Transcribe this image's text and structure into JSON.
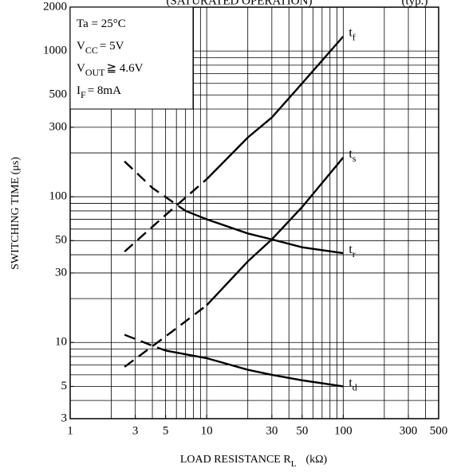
{
  "chart_data": {
    "type": "line",
    "title": "(SATURATED  OPERATION)",
    "subtitle": "(typ.)",
    "ylabel": "SWITCHING TIME  (μs)",
    "xlabel": "LOAD RESISTANCE  R",
    "xlabel_sub": "L",
    "xlabel_rest": "(kΩ)",
    "log_x": true,
    "log_y": true,
    "xlim": [
      1,
      500
    ],
    "ylim": [
      3,
      2000
    ],
    "xticks": [
      1,
      3,
      5,
      10,
      30,
      50,
      100,
      300,
      500
    ],
    "yticks": [
      3,
      5,
      10,
      30,
      50,
      100,
      300,
      500,
      1000,
      2000
    ],
    "xgrid": [
      2,
      3,
      4,
      5,
      6,
      7,
      8,
      9,
      10,
      20,
      30,
      40,
      50,
      60,
      70,
      80,
      90,
      100,
      200,
      300,
      400
    ],
    "ygrid": [
      4,
      5,
      6,
      7,
      8,
      9,
      10,
      20,
      30,
      40,
      50,
      60,
      70,
      80,
      90,
      100,
      200,
      300,
      400,
      500,
      600,
      700,
      800,
      900,
      1000
    ],
    "conditions": [
      {
        "main": "Ta = 25°C"
      },
      {
        "main": "V",
        "sub": "CC",
        "rest": "= 5V"
      },
      {
        "main": "V",
        "sub": "OUT",
        "rest": "≧ 4.6V"
      },
      {
        "main": "I",
        "sub": "F",
        "rest": "= 8mA"
      }
    ],
    "color": "#000000",
    "series": [
      {
        "name": "t",
        "name_sub": "f",
        "segments": [
          {
            "style": "dashed",
            "x": [
              2.5,
              5,
              10
            ],
            "values": [
              42,
              75,
              132
            ]
          },
          {
            "style": "solid",
            "x": [
              10,
              20,
              30,
              50,
              100
            ],
            "values": [
              132,
              255,
              350,
              600,
              1260
            ]
          }
        ]
      },
      {
        "name": "t",
        "name_sub": "s",
        "segments": [
          {
            "style": "dashed",
            "x": [
              2.5,
              5,
              10
            ],
            "values": [
              6.8,
              11,
              18
            ]
          },
          {
            "style": "solid",
            "x": [
              10,
              20,
              30,
              50,
              100
            ],
            "values": [
              18,
              36,
              51,
              85,
              186
            ]
          }
        ]
      },
      {
        "name": "t",
        "name_sub": "r",
        "segments": [
          {
            "style": "dashed",
            "x": [
              2.5,
              4,
              7
            ],
            "values": [
              175,
              115,
              80
            ]
          },
          {
            "style": "solid",
            "x": [
              7,
              10,
              20,
              30,
              50,
              100
            ],
            "values": [
              80,
              70,
              56,
              51,
              45,
              41
            ]
          }
        ]
      },
      {
        "name": "t",
        "name_sub": "d",
        "segments": [
          {
            "style": "dashed",
            "x": [
              2.5,
              4,
              5
            ],
            "values": [
              11.3,
              9.5,
              8.8
            ]
          },
          {
            "style": "solid",
            "x": [
              5,
              10,
              20,
              30,
              50,
              100
            ],
            "values": [
              8.8,
              7.8,
              6.5,
              6,
              5.5,
              5
            ]
          }
        ]
      }
    ]
  }
}
